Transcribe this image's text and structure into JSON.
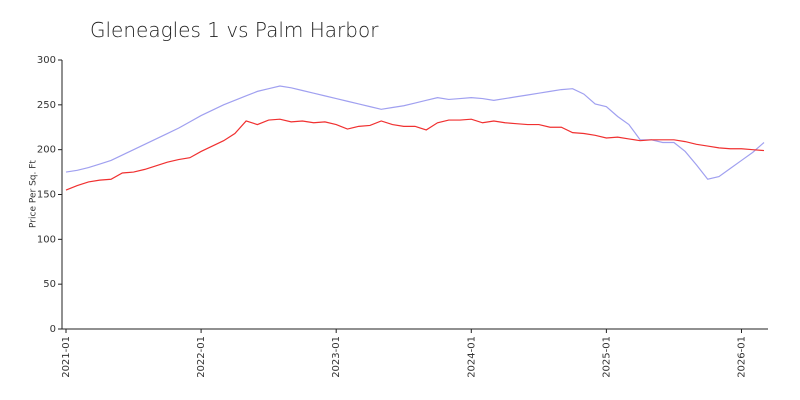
{
  "chart_data": {
    "type": "line",
    "title": "Gleneagles 1 vs Palm Harbor",
    "y_label": "Price Per Sq. Ft",
    "x": [
      "2021-01",
      "2021-02",
      "2021-03",
      "2021-04",
      "2021-05",
      "2021-06",
      "2021-07",
      "2021-08",
      "2021-09",
      "2021-10",
      "2021-11",
      "2021-12",
      "2022-01",
      "2022-02",
      "2022-03",
      "2022-04",
      "2022-05",
      "2022-06",
      "2022-07",
      "2022-08",
      "2022-09",
      "2022-10",
      "2022-11",
      "2022-12",
      "2023-01",
      "2023-02",
      "2023-03",
      "2023-04",
      "2023-05",
      "2023-06",
      "2023-07",
      "2023-08",
      "2023-09",
      "2023-10",
      "2023-11",
      "2023-12",
      "2024-01",
      "2024-02",
      "2024-03",
      "2024-04",
      "2024-05",
      "2024-06",
      "2024-07",
      "2024-08",
      "2024-09",
      "2024-10",
      "2024-11",
      "2024-12",
      "2025-01",
      "2025-02",
      "2025-03",
      "2025-04",
      "2025-05",
      "2025-06",
      "2025-07",
      "2025-08",
      "2025-09",
      "2025-10",
      "2025-11",
      "2025-12",
      "2026-01",
      "2026-02",
      "2026-03"
    ],
    "series": [
      {
        "color": "#a0a0f0",
        "values": [
          175,
          177,
          180,
          184,
          188,
          194,
          200,
          206,
          212,
          218,
          224,
          231,
          238,
          244,
          250,
          255,
          260,
          265,
          268,
          271,
          269,
          266,
          263,
          260,
          257,
          254,
          251,
          248,
          245,
          247,
          249,
          252,
          255,
          258,
          256,
          257,
          258,
          257,
          255,
          257,
          259,
          261,
          263,
          265,
          267,
          268,
          262,
          251,
          248,
          237,
          228,
          211,
          211,
          208,
          208,
          198,
          183,
          167,
          170,
          179,
          188,
          197,
          208
        ]
      },
      {
        "color": "#f03030",
        "values": [
          155,
          160,
          164,
          166,
          167,
          174,
          175,
          178,
          182,
          186,
          189,
          191,
          198,
          204,
          210,
          218,
          232,
          228,
          233,
          234,
          231,
          232,
          230,
          231,
          228,
          223,
          226,
          227,
          232,
          228,
          226,
          226,
          222,
          230,
          233,
          233,
          234,
          230,
          232,
          230,
          229,
          228,
          228,
          225,
          225,
          219,
          218,
          216,
          213,
          214,
          212,
          210,
          211,
          211,
          211,
          209,
          206,
          204,
          202,
          201,
          201,
          200,
          199
        ]
      }
    ],
    "xlim": [
      "2021-01",
      "2026-03"
    ],
    "xticks": [
      "2021-01",
      "2022-01",
      "2023-01",
      "2024-01",
      "2025-01",
      "2026-01"
    ],
    "ylim": [
      0,
      300
    ],
    "yticks": [
      0,
      50,
      100,
      150,
      200,
      250,
      300
    ],
    "grid": false
  }
}
